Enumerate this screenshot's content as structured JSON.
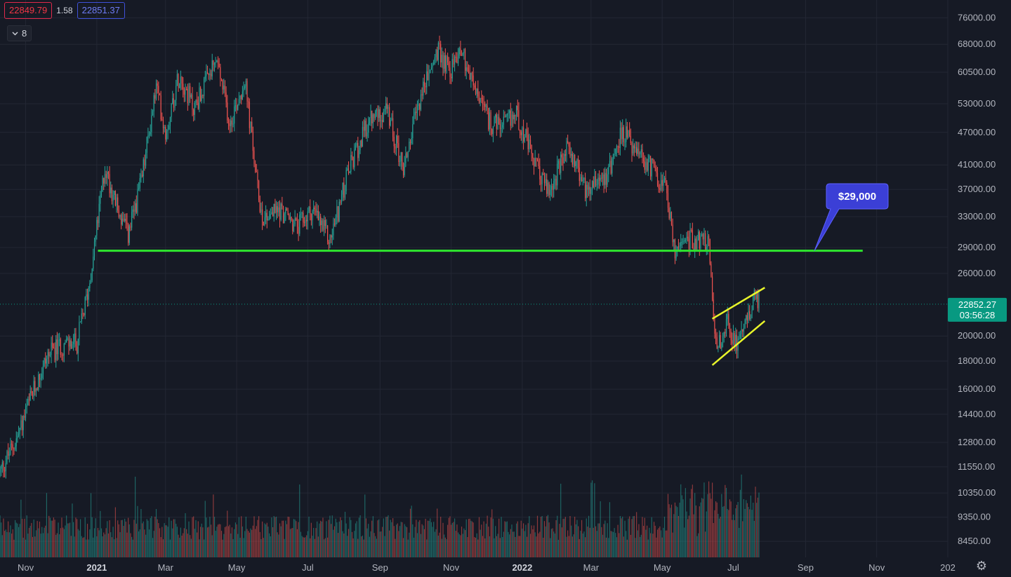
{
  "header": {
    "sell_price": "22849.79",
    "spread": "1.58",
    "buy_price": "22851.37",
    "indicator_count": "8",
    "collapse_icon": "chevron-down-icon"
  },
  "settings_icon": "gear-icon",
  "colors": {
    "background": "#161a25",
    "up": "#26a69a",
    "down": "#ef5350",
    "support_line": "#2ee62e",
    "channel": "#e8f52a",
    "callout": "#3b3fd6",
    "price_label": "#089981"
  },
  "chart_data": {
    "type": "candlestick",
    "y_scale": "log",
    "ylim": [
      7900,
      80000
    ],
    "price_axis_ticks": [
      "76000.00",
      "68000.00",
      "60500.00",
      "53000.00",
      "47000.00",
      "41000.00",
      "37000.00",
      "33000.00",
      "29000.00",
      "26000.00",
      "20000.00",
      "18000.00",
      "16000.00",
      "14400.00",
      "12800.00",
      "11550.00",
      "10350.00",
      "9350.00",
      "8450.00"
    ],
    "time_axis_ticks": [
      {
        "label": "Nov",
        "date": "2020-11-01",
        "bold": false
      },
      {
        "label": "2021",
        "date": "2021-01-01",
        "bold": true
      },
      {
        "label": "Mar",
        "date": "2021-03-01",
        "bold": false
      },
      {
        "label": "May",
        "date": "2021-05-01",
        "bold": false
      },
      {
        "label": "Jul",
        "date": "2021-07-01",
        "bold": false
      },
      {
        "label": "Sep",
        "date": "2021-09-01",
        "bold": false
      },
      {
        "label": "Nov",
        "date": "2021-11-01",
        "bold": false
      },
      {
        "label": "2022",
        "date": "2022-01-01",
        "bold": true
      },
      {
        "label": "Mar",
        "date": "2022-03-01",
        "bold": false
      },
      {
        "label": "May",
        "date": "2022-05-01",
        "bold": false
      },
      {
        "label": "Jul",
        "date": "2022-07-01",
        "bold": false
      },
      {
        "label": "Sep",
        "date": "2022-09-01",
        "bold": false
      },
      {
        "label": "Nov",
        "date": "2022-11-01",
        "bold": false
      },
      {
        "label": "202",
        "date": "2023-01-01",
        "bold": false
      }
    ],
    "x_range": [
      "2020-10-10",
      "2023-01-01"
    ],
    "close_path": [
      [
        "2020-10-10",
        11300
      ],
      [
        "2020-10-25",
        13100
      ],
      [
        "2020-11-05",
        15300
      ],
      [
        "2020-11-20",
        18500
      ],
      [
        "2020-12-01",
        19200
      ],
      [
        "2020-12-15",
        19400
      ],
      [
        "2020-12-25",
        24500
      ],
      [
        "2021-01-08",
        40500
      ],
      [
        "2021-01-20",
        33500
      ],
      [
        "2021-01-28",
        30500
      ],
      [
        "2021-02-08",
        38000
      ],
      [
        "2021-02-21",
        57000
      ],
      [
        "2021-03-01",
        47000
      ],
      [
        "2021-03-13",
        60500
      ],
      [
        "2021-03-25",
        52000
      ],
      [
        "2021-04-14",
        63500
      ],
      [
        "2021-04-25",
        49000
      ],
      [
        "2021-05-08",
        58500
      ],
      [
        "2021-05-19",
        37000
      ],
      [
        "2021-05-23",
        33000
      ],
      [
        "2021-06-07",
        34000
      ],
      [
        "2021-06-22",
        31500
      ],
      [
        "2021-07-05",
        34000
      ],
      [
        "2021-07-20",
        29800
      ],
      [
        "2021-08-05",
        40000
      ],
      [
        "2021-08-22",
        49000
      ],
      [
        "2021-09-06",
        52000
      ],
      [
        "2021-09-21",
        40500
      ],
      [
        "2021-10-06",
        55000
      ],
      [
        "2021-10-20",
        66000
      ],
      [
        "2021-11-01",
        61000
      ],
      [
        "2021-11-09",
        67500
      ],
      [
        "2021-11-20",
        57000
      ],
      [
        "2021-12-04",
        49000
      ],
      [
        "2021-12-15",
        48000
      ],
      [
        "2021-12-27",
        51000
      ],
      [
        "2022-01-10",
        42000
      ],
      [
        "2022-01-24",
        36500
      ],
      [
        "2022-02-10",
        44500
      ],
      [
        "2022-02-24",
        37000
      ],
      [
        "2022-03-05",
        39000
      ],
      [
        "2022-03-15",
        39500
      ],
      [
        "2022-03-28",
        47500
      ],
      [
        "2022-04-10",
        42500
      ],
      [
        "2022-04-25",
        40000
      ],
      [
        "2022-05-05",
        36500
      ],
      [
        "2022-05-12",
        28500
      ],
      [
        "2022-05-20",
        30000
      ],
      [
        "2022-06-01",
        30000
      ],
      [
        "2022-06-10",
        29500
      ],
      [
        "2022-06-13",
        22500
      ],
      [
        "2022-06-18",
        19000
      ],
      [
        "2022-06-26",
        21500
      ],
      [
        "2022-07-02",
        19200
      ],
      [
        "2022-07-10",
        21000
      ],
      [
        "2022-07-20",
        23500
      ],
      [
        "2022-07-23",
        22850
      ]
    ],
    "last_price": {
      "value": 22852.27,
      "price_label": "22852.27",
      "countdown": "03:56:28"
    },
    "annotations": {
      "support_line": {
        "price": 28600,
        "from": "2021-01-02",
        "to": "2022-10-20"
      },
      "callout": {
        "text": "$29,000"
      },
      "channel_upper": {
        "from": [
          "2022-06-13",
          21500
        ],
        "to": [
          "2022-07-28",
          24500
        ]
      },
      "channel_lower": {
        "from": [
          "2022-06-13",
          17700
        ],
        "to": [
          "2022-07-28",
          21300
        ]
      }
    }
  }
}
